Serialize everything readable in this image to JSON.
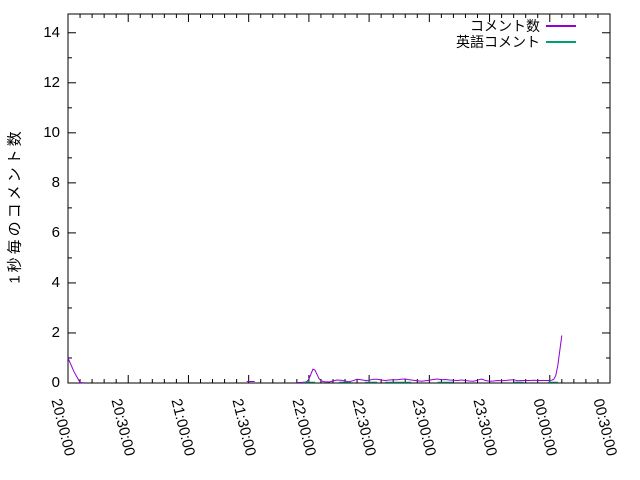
{
  "chart_data": {
    "type": "line",
    "title": "",
    "ylabel": "1秒毎のコメント数",
    "xlabel": "",
    "x_tick_labels": [
      "20:00:00",
      "20:30:00",
      "21:00:00",
      "21:30:00",
      "22:00:00",
      "22:30:00",
      "23:00:00",
      "23:30:00",
      "00:00:00",
      "00:30:00"
    ],
    "x_tick_minutes": [
      0,
      30,
      60,
      90,
      120,
      150,
      180,
      210,
      240,
      270
    ],
    "x_minor_tick_interval_minutes": 6,
    "xlim_minutes": [
      0,
      270
    ],
    "y_tick_labels": [
      "0",
      "2",
      "4",
      "6",
      "8",
      "10",
      "12",
      "14"
    ],
    "y_tick_values": [
      0,
      2,
      4,
      6,
      8,
      10,
      12,
      14
    ],
    "y_minor_tick_interval": 1,
    "ylim": [
      0,
      14.75
    ],
    "grid": false,
    "legend_position": "top-right-inside",
    "series": [
      {
        "name": "コメント数",
        "color": "#9400d3",
        "x_unit": "minutes_since_20:00:00",
        "segments": [
          [
            [
              0,
              1.0
            ],
            [
              3,
              0.45
            ],
            [
              6,
              0.02
            ],
            [
              8,
              0.01
            ]
          ],
          [
            [
              89,
              0.06
            ],
            [
              93,
              0.06
            ]
          ],
          [
            [
              114,
              0.02
            ],
            [
              116,
              0.02
            ],
            [
              118,
              0.03
            ],
            [
              119,
              0.06
            ],
            [
              120,
              0.15
            ],
            [
              121,
              0.35
            ],
            [
              122,
              0.55
            ],
            [
              123,
              0.52
            ],
            [
              124,
              0.35
            ],
            [
              125,
              0.18
            ],
            [
              126,
              0.1
            ],
            [
              127,
              0.06
            ],
            [
              128,
              0.05
            ],
            [
              130,
              0.04
            ],
            [
              132,
              0.08
            ],
            [
              134,
              0.12
            ],
            [
              136,
              0.11
            ],
            [
              138,
              0.08
            ],
            [
              140,
              0.05
            ],
            [
              142,
              0.09
            ],
            [
              144,
              0.15
            ],
            [
              146,
              0.13
            ],
            [
              148,
              0.1
            ],
            [
              150,
              0.11
            ],
            [
              152,
              0.15
            ],
            [
              154,
              0.15
            ],
            [
              156,
              0.12
            ],
            [
              158,
              0.1
            ],
            [
              160,
              0.12
            ],
            [
              162,
              0.13
            ],
            [
              164,
              0.13
            ],
            [
              166,
              0.15
            ],
            [
              168,
              0.16
            ],
            [
              170,
              0.13
            ],
            [
              172,
              0.11
            ],
            [
              174,
              0.09
            ],
            [
              176,
              0.07
            ],
            [
              178,
              0.09
            ],
            [
              180,
              0.11
            ],
            [
              182,
              0.14
            ],
            [
              184,
              0.16
            ],
            [
              186,
              0.13
            ],
            [
              188,
              0.14
            ],
            [
              190,
              0.12
            ],
            [
              192,
              0.11
            ],
            [
              194,
              0.1
            ],
            [
              196,
              0.12
            ],
            [
              198,
              0.1
            ],
            [
              200,
              0.08
            ],
            [
              202,
              0.07
            ],
            [
              204,
              0.11
            ],
            [
              206,
              0.16
            ],
            [
              208,
              0.1
            ],
            [
              210,
              0.07
            ],
            [
              212,
              0.08
            ],
            [
              214,
              0.1
            ],
            [
              216,
              0.09
            ],
            [
              218,
              0.1
            ],
            [
              220,
              0.12
            ],
            [
              222,
              0.13
            ],
            [
              224,
              0.09
            ],
            [
              226,
              0.1
            ],
            [
              228,
              0.1
            ],
            [
              230,
              0.1
            ],
            [
              232,
              0.11
            ],
            [
              234,
              0.1
            ],
            [
              236,
              0.1
            ],
            [
              238,
              0.1
            ],
            [
              240,
              0.1
            ],
            [
              241,
              0.11
            ],
            [
              242,
              0.15
            ],
            [
              243,
              0.3
            ],
            [
              244,
              0.7
            ],
            [
              245,
              1.3
            ],
            [
              246,
              1.9
            ]
          ]
        ]
      },
      {
        "name": "英語コメント",
        "color": "#009e73",
        "x_unit": "minutes_since_20:00:00",
        "segments": [
          [
            [
              117,
              0.03
            ],
            [
              123,
              0.03
            ]
          ],
          [
            [
              135,
              0.03
            ],
            [
              141,
              0.03
            ]
          ],
          [
            [
              148,
              0.03
            ],
            [
              154,
              0.03
            ]
          ],
          [
            [
              158,
              0.03
            ],
            [
              171,
              0.03
            ]
          ],
          [
            [
              184,
              0.03
            ],
            [
              192,
              0.03
            ]
          ],
          [
            [
              222,
              0.03
            ],
            [
              227,
              0.03
            ]
          ],
          [
            [
              239,
              0.03
            ],
            [
              244,
              0.03
            ]
          ]
        ]
      }
    ]
  },
  "colors": {
    "background": "#ffffff",
    "axis": "#000000",
    "text": "#000000"
  }
}
